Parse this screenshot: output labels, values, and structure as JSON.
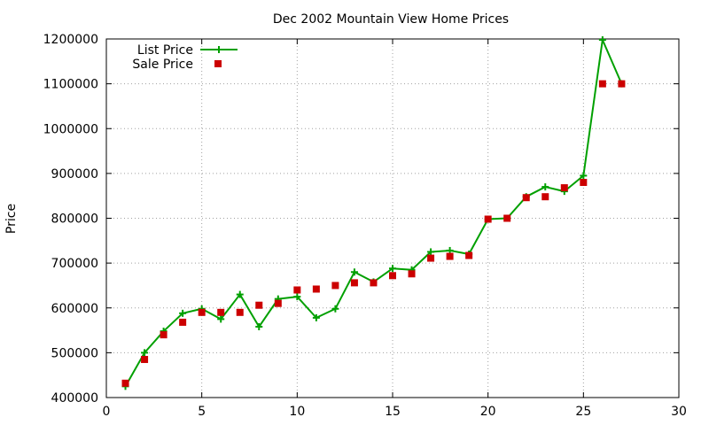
{
  "chart_data": {
    "type": "line",
    "title": "Dec 2002 Mountain View Home Prices",
    "xlabel": "",
    "ylabel": "Price",
    "xlim": [
      0,
      30
    ],
    "ylim": [
      400000,
      1200000
    ],
    "x_ticks": [
      0,
      5,
      10,
      15,
      20,
      25,
      30
    ],
    "y_ticks": [
      400000,
      500000,
      600000,
      700000,
      800000,
      900000,
      1000000,
      1100000,
      1200000
    ],
    "grid": true,
    "legend_position": "top-left",
    "series": [
      {
        "name": "List Price",
        "style": "linespoints",
        "marker": "plus",
        "color": "#00a000",
        "x": [
          1,
          2,
          3,
          4,
          5,
          6,
          7,
          8,
          9,
          10,
          11,
          12,
          13,
          14,
          15,
          16,
          17,
          18,
          19,
          20,
          21,
          22,
          23,
          24,
          25,
          26,
          27
        ],
        "values": [
          425000,
          500000,
          548000,
          588000,
          598000,
          575000,
          630000,
          558000,
          620000,
          625000,
          578000,
          598000,
          680000,
          658000,
          688000,
          685000,
          725000,
          728000,
          720000,
          798000,
          800000,
          848000,
          870000,
          860000,
          895000,
          1198000,
          1100000
        ]
      },
      {
        "name": "Sale Price",
        "style": "points",
        "marker": "square",
        "color": "#cc0000",
        "x": [
          1,
          2,
          3,
          4,
          5,
          6,
          7,
          8,
          9,
          10,
          11,
          12,
          13,
          14,
          15,
          16,
          17,
          18,
          19,
          20,
          21,
          22,
          23,
          24,
          25,
          26,
          27
        ],
        "values": [
          432000,
          485000,
          540000,
          568000,
          590000,
          590000,
          590000,
          606000,
          610000,
          640000,
          642000,
          650000,
          656000,
          656000,
          672000,
          676000,
          711000,
          715000,
          717000,
          798000,
          800000,
          846000,
          848000,
          868000,
          880000,
          1100000,
          1100000
        ]
      }
    ]
  }
}
